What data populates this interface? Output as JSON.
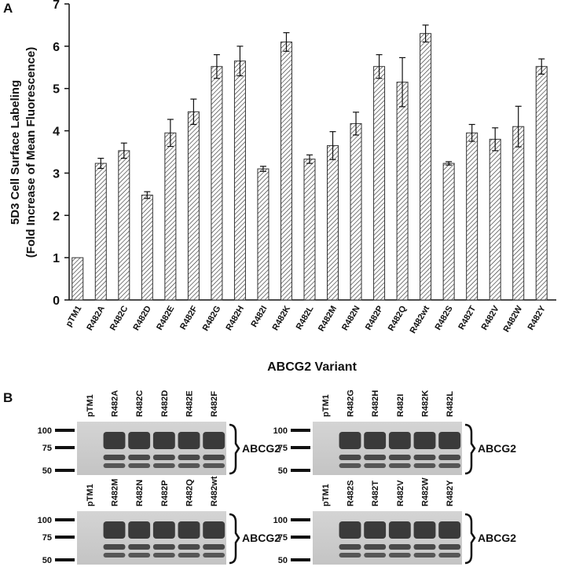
{
  "panels": {
    "a": "A",
    "b": "B"
  },
  "chart_data": {
    "type": "bar",
    "y_label_lines": [
      "5D3 Cell Surface Labeling",
      "(Fold Increase of Mean Fluorescence)"
    ],
    "x_label": "ABCG2 Variant",
    "categories": [
      "pTM1",
      "R482A",
      "R482C",
      "R482D",
      "R482E",
      "R482F",
      "R482G",
      "R482H",
      "R482I",
      "R482K",
      "R482L",
      "R482M",
      "R482N",
      "R482P",
      "R482Q",
      "R482wt",
      "R482S",
      "R482T",
      "R482V",
      "R482W",
      "R482Y"
    ],
    "values": [
      1.0,
      3.23,
      3.53,
      2.48,
      3.95,
      4.45,
      5.52,
      5.65,
      3.1,
      6.1,
      3.33,
      3.65,
      4.17,
      5.52,
      5.15,
      6.3,
      3.23,
      3.95,
      3.8,
      4.1,
      5.52
    ],
    "errors": [
      0,
      0.12,
      0.18,
      0.08,
      0.32,
      0.3,
      0.28,
      0.35,
      0.06,
      0.22,
      0.1,
      0.33,
      0.27,
      0.28,
      0.58,
      0.2,
      0.04,
      0.2,
      0.27,
      0.48,
      0.18
    ],
    "color": "#333333",
    "pattern": "hatch",
    "ylim": [
      0,
      7
    ],
    "yticks": [
      0,
      1,
      2,
      3,
      4,
      5,
      6,
      7
    ]
  },
  "blots": [
    {
      "lanes": [
        "pTM1",
        "R482A",
        "R482C",
        "R482D",
        "R482E",
        "R482F"
      ],
      "markers": [
        100,
        75,
        50
      ],
      "label": "ABCG2"
    },
    {
      "lanes": [
        "pTM1",
        "R482G",
        "R482H",
        "R482I",
        "R482K",
        "R482L"
      ],
      "markers": [
        100,
        75,
        50
      ],
      "label": "ABCG2"
    },
    {
      "lanes": [
        "pTM1",
        "R482M",
        "R482N",
        "R482P",
        "R482Q",
        "R482wt"
      ],
      "markers": [
        100,
        75,
        50
      ],
      "label": "ABCG2"
    },
    {
      "lanes": [
        "pTM1",
        "R482S",
        "R482T",
        "R482V",
        "R482W",
        "R482Y"
      ],
      "markers": [
        100,
        75,
        50
      ],
      "label": "ABCG2"
    }
  ]
}
